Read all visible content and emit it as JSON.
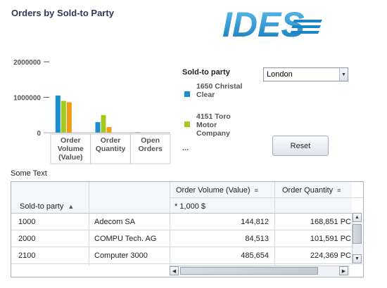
{
  "page": {
    "title": "Orders by Sold-to Party"
  },
  "logo": {
    "text": "IDES"
  },
  "chart_data": {
    "type": "bar",
    "categories": [
      "Order Volume (Value)",
      "Order Quantity",
      "Open Orders"
    ],
    "series": [
      {
        "values": [
          1050000,
          300000,
          15000
        ],
        "color": "#1a8fd0"
      },
      {
        "values": [
          900000,
          500000,
          10000
        ],
        "color": "#a3c81e"
      },
      {
        "values": [
          860000,
          160000,
          10000
        ],
        "color": "#f39b12"
      },
      {
        "values": [
          10000,
          10000,
          10000
        ],
        "color": "#3ba57a"
      }
    ],
    "y_ticks": [
      "2000000",
      "1000000",
      "0"
    ],
    "ylim": [
      0,
      2000000
    ],
    "category_labels": [
      [
        "Order",
        "Volume",
        "(Value)"
      ],
      [
        "Order",
        "Quantity"
      ],
      [
        "Open",
        "Orders"
      ]
    ]
  },
  "legend": {
    "title": "Sold-to party",
    "items": [
      {
        "label": "1650 Christal Clear",
        "color": "#1a8fd0"
      },
      {
        "label": "4151 Toro Motor Company",
        "color": "#a3c81e"
      }
    ],
    "more": "..."
  },
  "filter": {
    "value": "London",
    "arrow_icon": "chevron-down-icon"
  },
  "reset_button": {
    "label": "Reset"
  },
  "some_text": "Some Text",
  "table": {
    "columns": [
      {
        "label": "Sold-to party",
        "sort_icon": "sort-ascending-icon"
      },
      {
        "label": ""
      },
      {
        "label": "Order Volume (Value)",
        "sort_icon": "sort-menu-icon"
      },
      {
        "label": "Order Quantity",
        "sort_icon": "sort-menu-icon"
      }
    ],
    "unit_row": [
      "",
      "",
      "* 1,000 $",
      ""
    ],
    "rows": [
      [
        "1000",
        "Adecom SA",
        "144,812",
        "168,851 PC"
      ],
      [
        "2000",
        "COMPU Tech. AG",
        "84,513",
        "101,591 PC"
      ],
      [
        "2100",
        "Computer 3000",
        "485,654",
        "224,369 PC"
      ]
    ]
  }
}
